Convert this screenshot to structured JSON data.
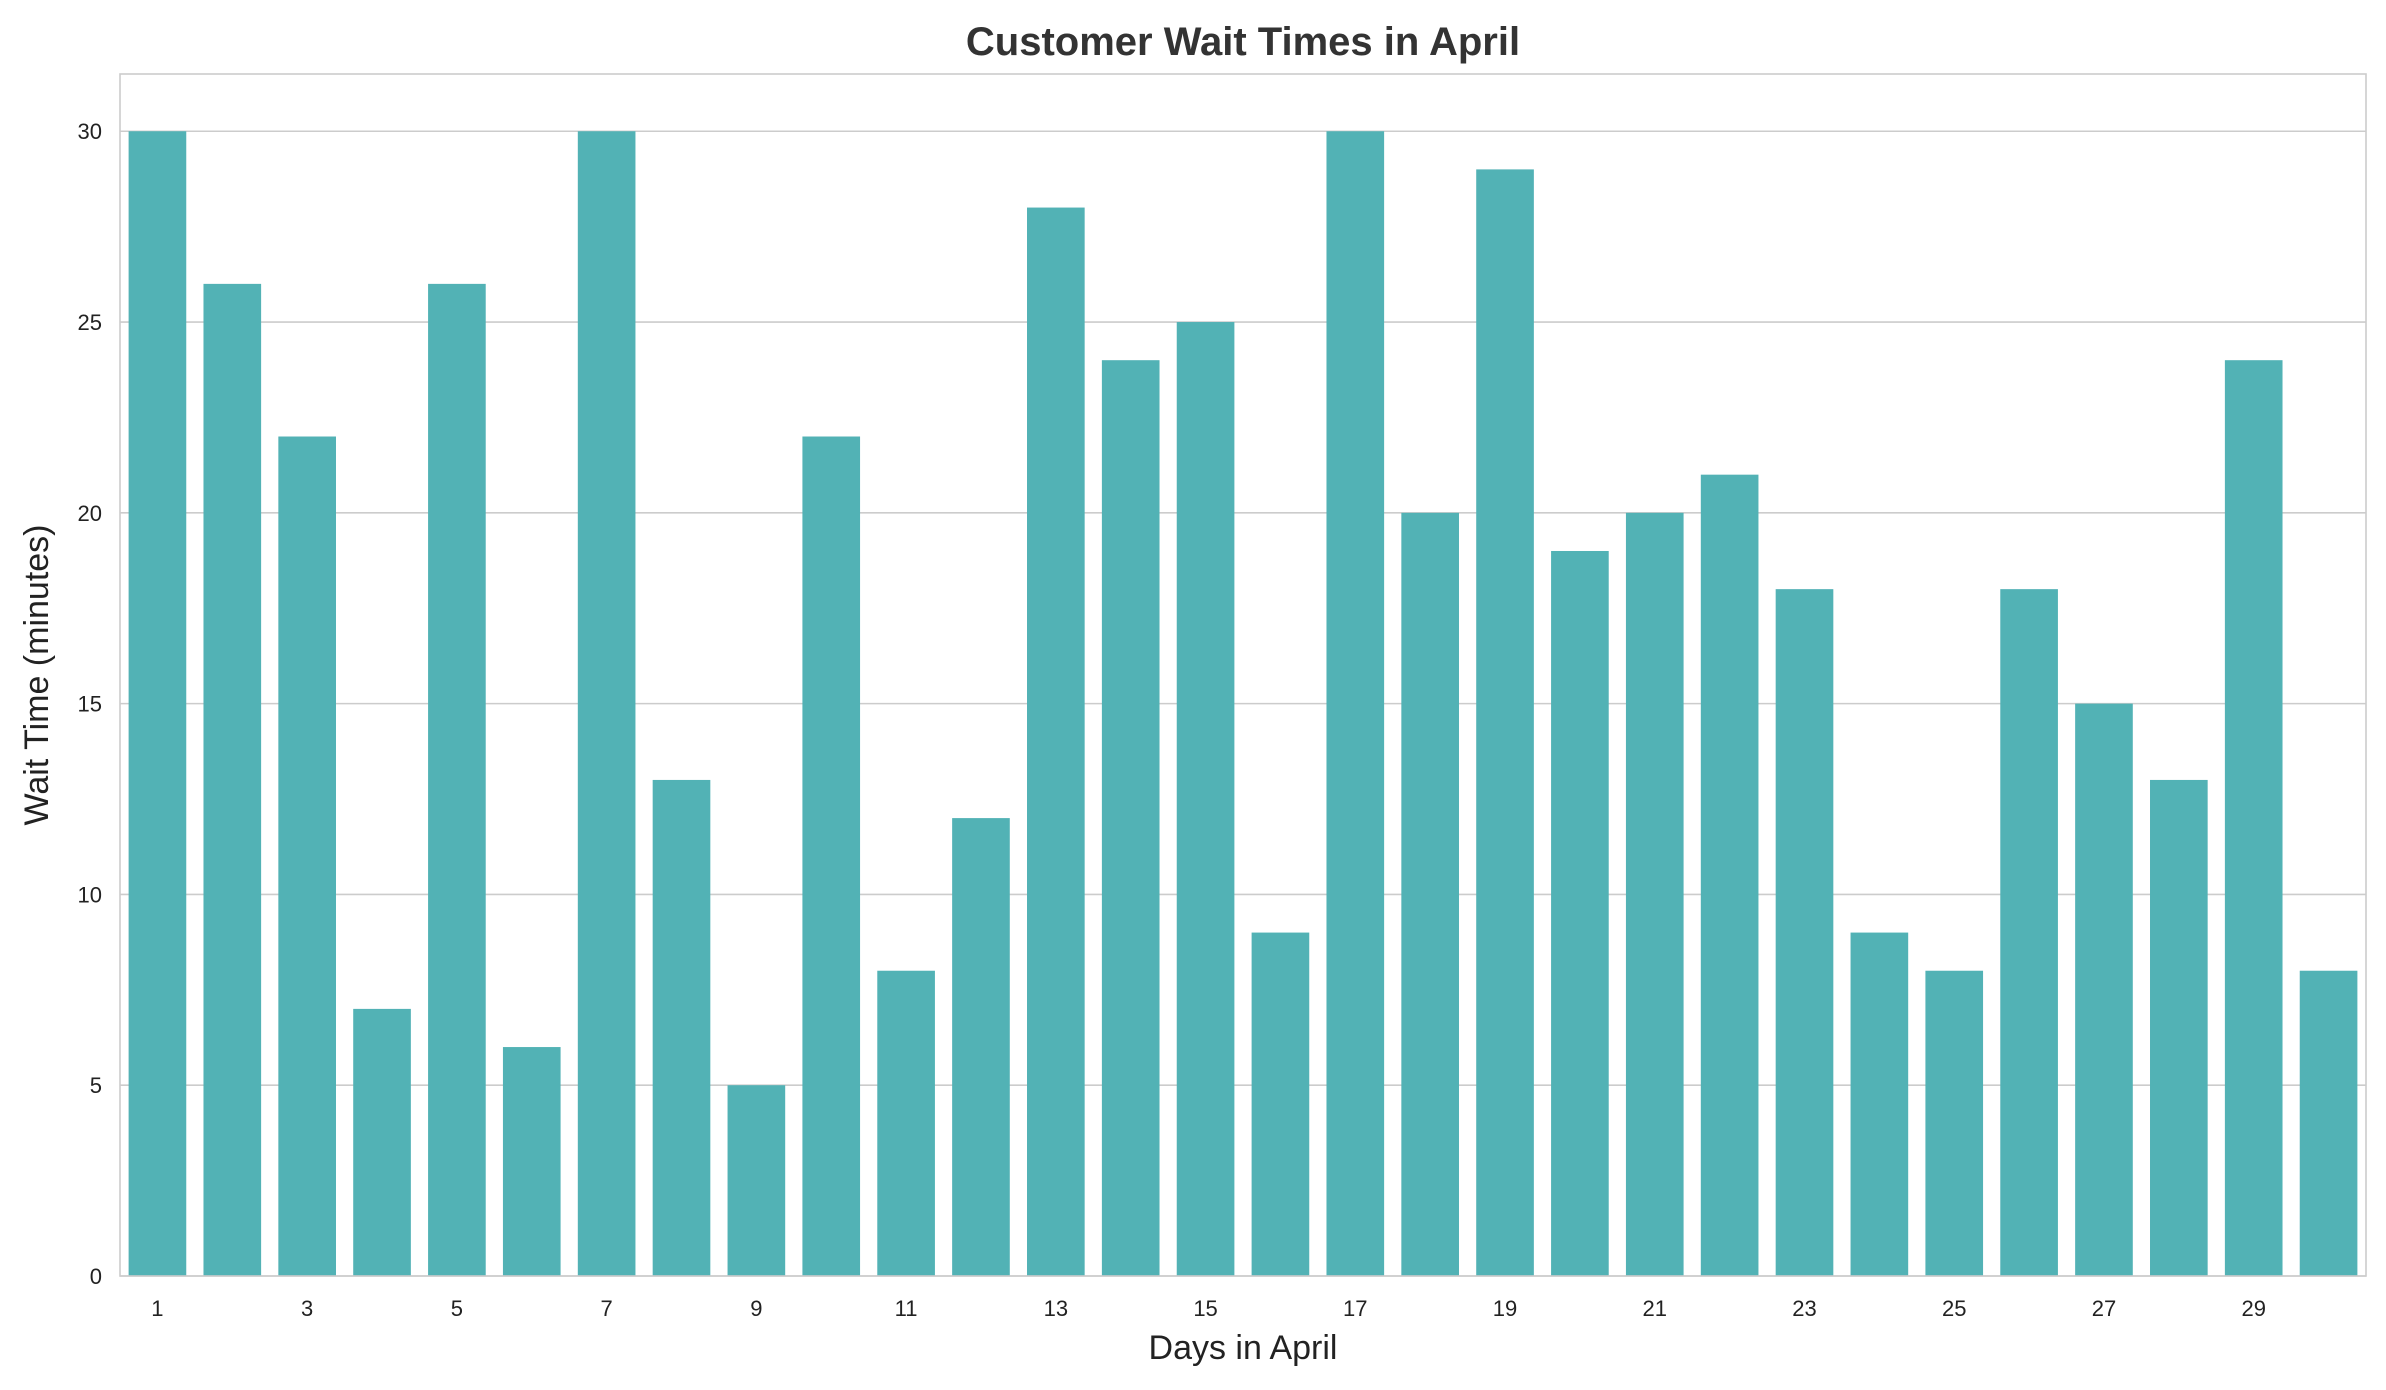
{
  "chart_data": {
    "type": "bar",
    "title": "Customer Wait Times in April",
    "xlabel": "Days in April",
    "ylabel": "Wait Time (minutes)",
    "categories": [
      "1",
      "2",
      "3",
      "4",
      "5",
      "6",
      "7",
      "8",
      "9",
      "10",
      "11",
      "12",
      "13",
      "14",
      "15",
      "16",
      "17",
      "18",
      "19",
      "20",
      "21",
      "22",
      "23",
      "24",
      "25",
      "26",
      "27",
      "28",
      "29",
      "30"
    ],
    "x_tick_labels": [
      "1",
      "3",
      "5",
      "7",
      "9",
      "11",
      "13",
      "15",
      "17",
      "19",
      "21",
      "23",
      "25",
      "27",
      "29"
    ],
    "values": [
      30,
      26,
      22,
      7,
      26,
      6,
      30,
      13,
      5,
      22,
      8,
      12,
      28,
      24,
      25,
      9,
      30,
      20,
      29,
      19,
      20,
      21,
      18,
      9,
      8,
      18,
      15,
      13,
      24,
      8
    ],
    "ylim": [
      0,
      31.5
    ],
    "y_ticks": [
      0,
      5,
      10,
      15,
      20,
      25,
      30
    ],
    "grid": "horizontal",
    "bar_color": "#52b2b5"
  }
}
